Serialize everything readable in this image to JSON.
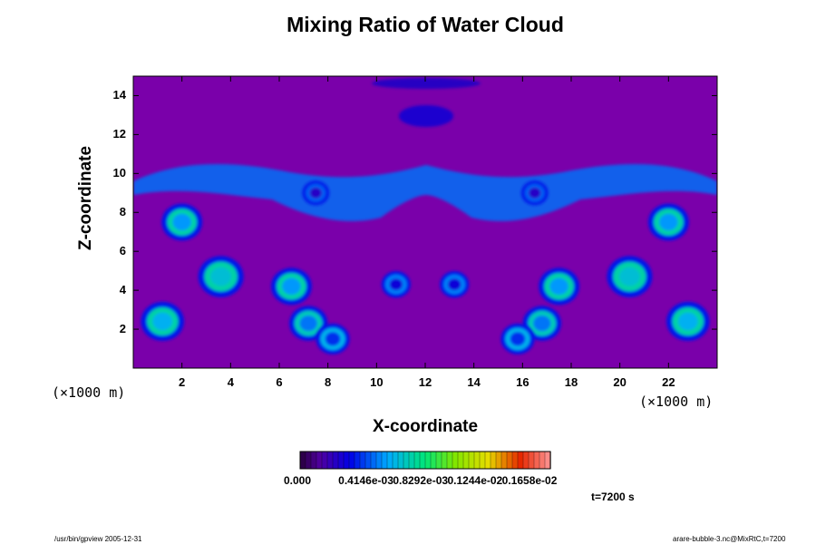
{
  "chart_data": {
    "type": "heatmap",
    "title": "Mixing Ratio of Water Cloud",
    "xlabel": "X-coordinate",
    "ylabel": "Z-coordinate",
    "x_unit": "(×1000 m)",
    "y_unit": "(×1000 m)",
    "x_ticks": [
      "2",
      "4",
      "6",
      "8",
      "10",
      "12",
      "14",
      "16",
      "18",
      "20",
      "22"
    ],
    "y_ticks": [
      "2",
      "4",
      "6",
      "8",
      "10",
      "12",
      "14"
    ],
    "xlim": [
      0,
      24
    ],
    "ylim": [
      0,
      15
    ],
    "colorbar": {
      "labels": [
        "0.000",
        "0.4146e-03",
        "0.8292e-03",
        "0.1244e-02",
        "0.1658e-02"
      ],
      "range": [
        0,
        0.0019
      ]
    },
    "time_label": "t=7200 s",
    "features": [
      {
        "x": 2.0,
        "z": 7.5,
        "value": 0.0009
      },
      {
        "x": 22.0,
        "z": 7.5,
        "value": 0.0009
      },
      {
        "x": 1.2,
        "z": 2.4,
        "value": 0.001
      },
      {
        "x": 22.8,
        "z": 2.4,
        "value": 0.001
      },
      {
        "x": 6.5,
        "z": 4.2,
        "value": 0.0009
      },
      {
        "x": 17.5,
        "z": 4.2,
        "value": 0.0009
      },
      {
        "x": 7.2,
        "z": 2.3,
        "value": 0.0008
      },
      {
        "x": 16.8,
        "z": 2.3,
        "value": 0.0008
      },
      {
        "x": 3.6,
        "z": 4.7,
        "value": 0.0011
      },
      {
        "x": 20.4,
        "z": 4.7,
        "value": 0.0011
      },
      {
        "x": 10.8,
        "z": 4.3,
        "value": 0.0004
      },
      {
        "x": 13.2,
        "z": 4.3,
        "value": 0.0004
      },
      {
        "x": 8.2,
        "z": 1.5,
        "value": 0.0006
      },
      {
        "x": 15.8,
        "z": 1.5,
        "value": 0.0006
      },
      {
        "x": 7.5,
        "z": 9.0,
        "value": 0.0003
      },
      {
        "x": 16.5,
        "z": 9.0,
        "value": 0.0003
      }
    ]
  },
  "footer": {
    "left": "/usr/bin/gpview 2005-12-31",
    "right": "arare-bubble-3.nc@MixRtC,t=7200"
  }
}
